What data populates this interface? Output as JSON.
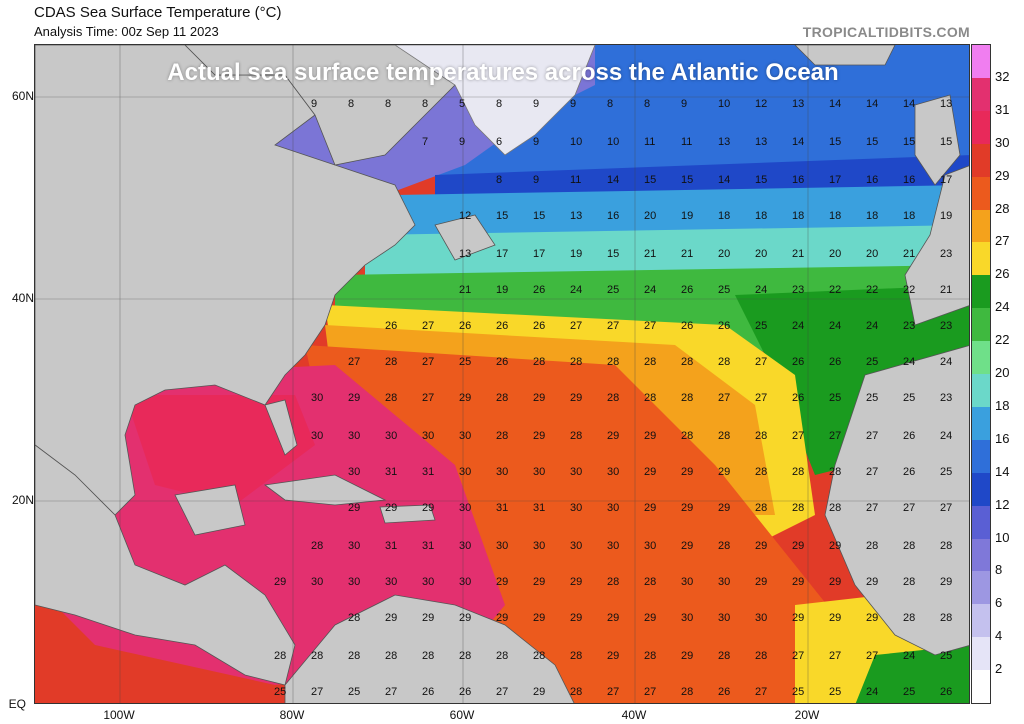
{
  "header": {
    "title": "CDAS Sea Surface Temperature (°C)",
    "analysis_time": "Analysis Time: 00z Sep 11 2023",
    "source": "TROPICALTIDBITS.COM"
  },
  "overlay_caption": "Actual sea surface temperatures across the Atlantic Ocean",
  "lat_labels": [
    "60N",
    "40N",
    "20N",
    "EQ"
  ],
  "lon_labels": [
    "100W",
    "80W",
    "60W",
    "40W",
    "20W"
  ],
  "colorbar": {
    "labels": [
      "32",
      "31",
      "30",
      "29",
      "28",
      "27",
      "26",
      "24",
      "22",
      "20",
      "18",
      "16",
      "14",
      "12",
      "10",
      "8",
      "6",
      "4",
      "2"
    ],
    "colors": [
      "#f07ef0",
      "#e3306f",
      "#e8295a",
      "#e13b28",
      "#ec5a1d",
      "#f4a21c",
      "#f9d829",
      "#1a9b1f",
      "#3fb93f",
      "#6fe089",
      "#6bd8c9",
      "#3aa0de",
      "#2f6fd9",
      "#1f48c8",
      "#5a5fd4",
      "#7f78d9",
      "#9d97e2",
      "#c4c1ee",
      "#e5e4f7",
      "#ffffff"
    ]
  },
  "regions": [
    {
      "color": "#7b75d6"
    },
    {
      "color": "#2f6fd9"
    },
    {
      "color": "#3aa0de"
    },
    {
      "color": "#1f48c8"
    },
    {
      "color": "#6bd8c9"
    },
    {
      "color": "#3fb93f"
    },
    {
      "color": "#1a9b1f"
    },
    {
      "color": "#f9d829"
    },
    {
      "color": "#f4a21c"
    },
    {
      "color": "#ec5a1d"
    },
    {
      "color": "#e13b28"
    },
    {
      "color": "#e3306f"
    },
    {
      "color": "#c8c8c8"
    }
  ],
  "sst_values": [
    {
      "row": "63N",
      "values": [
        "9",
        "8",
        "8",
        "8",
        "5",
        "8",
        "9",
        "9",
        "8",
        "8",
        "9",
        "10",
        "12",
        "13",
        "14",
        "14",
        "14",
        "13"
      ]
    },
    {
      "row": "57N",
      "values": [
        "7",
        "9",
        "6",
        "9",
        "10",
        "10",
        "11",
        "11",
        "13",
        "13",
        "14",
        "15",
        "15",
        "15",
        "15"
      ]
    },
    {
      "row": "53N",
      "values": [
        "8",
        "9",
        "11",
        "14",
        "15",
        "15",
        "14",
        "15",
        "16",
        "17",
        "16",
        "16",
        "17"
      ]
    },
    {
      "row": "48N",
      "values": [
        "12",
        "15",
        "15",
        "13",
        "16",
        "20",
        "19",
        "18",
        "18",
        "18",
        "18",
        "18",
        "18",
        "19"
      ]
    },
    {
      "row": "44N",
      "values": [
        "13",
        "17",
        "17",
        "19",
        "15",
        "21",
        "21",
        "20",
        "20",
        "21",
        "20",
        "20",
        "21",
        "23"
      ]
    },
    {
      "row": "40N",
      "values": [
        "21",
        "19",
        "26",
        "24",
        "25",
        "24",
        "26",
        "25",
        "24",
        "23",
        "22",
        "22",
        "22",
        "21"
      ]
    },
    {
      "row": "36N",
      "values": [
        "26",
        "27",
        "26",
        "26",
        "26",
        "27",
        "27",
        "27",
        "26",
        "26",
        "25",
        "24",
        "24",
        "24",
        "23",
        "23"
      ]
    },
    {
      "row": "32N",
      "values": [
        "27",
        "28",
        "27",
        "25",
        "26",
        "28",
        "28",
        "28",
        "28",
        "28",
        "28",
        "27",
        "26",
        "26",
        "25",
        "24",
        "24"
      ]
    },
    {
      "row": "28N",
      "values": [
        "30",
        "29",
        "28",
        "27",
        "29",
        "28",
        "29",
        "29",
        "28",
        "28",
        "28",
        "27",
        "27",
        "26",
        "25",
        "25",
        "25",
        "23"
      ]
    },
    {
      "row": "24N",
      "values": [
        "30",
        "30",
        "30",
        "30",
        "30",
        "28",
        "29",
        "28",
        "29",
        "29",
        "28",
        "28",
        "28",
        "27",
        "27",
        "27",
        "26",
        "24"
      ]
    },
    {
      "row": "21N",
      "values": [
        "30",
        "31",
        "31",
        "30",
        "30",
        "30",
        "30",
        "30",
        "29",
        "29",
        "29",
        "28",
        "28",
        "28",
        "27",
        "26",
        "25"
      ]
    },
    {
      "row": "17N",
      "values": [
        "29",
        "29",
        "29",
        "30",
        "31",
        "31",
        "30",
        "30",
        "29",
        "29",
        "29",
        "28",
        "28",
        "28",
        "27",
        "27",
        "27"
      ]
    },
    {
      "row": "13N",
      "values": [
        "28",
        "30",
        "31",
        "31",
        "30",
        "30",
        "30",
        "30",
        "30",
        "30",
        "29",
        "28",
        "29",
        "29",
        "29",
        "28",
        "28",
        "28"
      ]
    },
    {
      "row": "10N",
      "values": [
        "29",
        "30",
        "30",
        "30",
        "30",
        "30",
        "29",
        "29",
        "29",
        "28",
        "28",
        "30",
        "30",
        "29",
        "29",
        "29",
        "29",
        "28",
        "29"
      ]
    },
    {
      "row": "6N",
      "values": [
        "28",
        "29",
        "29",
        "29",
        "29",
        "29",
        "29",
        "29",
        "29",
        "30",
        "30",
        "30",
        "29",
        "29",
        "29",
        "28",
        "28"
      ]
    },
    {
      "row": "2N",
      "values": [
        "28",
        "28",
        "28",
        "28",
        "28",
        "28",
        "28",
        "28",
        "28",
        "29",
        "28",
        "29",
        "28",
        "28",
        "27",
        "27",
        "27",
        "24",
        "25"
      ]
    },
    {
      "row": "0N",
      "values": [
        "25",
        "27",
        "25",
        "27",
        "26",
        "26",
        "27",
        "29",
        "28",
        "27",
        "27",
        "28",
        "26",
        "27",
        "25",
        "25",
        "24",
        "25",
        "26"
      ]
    }
  ]
}
